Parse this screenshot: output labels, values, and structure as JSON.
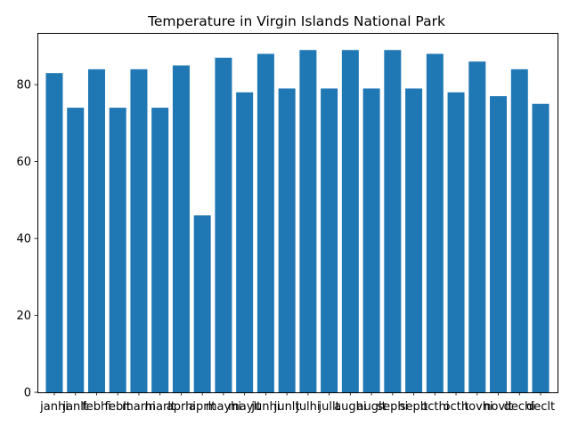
{
  "chart_data": {
    "type": "bar",
    "title": "Temperature in Virgin Islands National Park",
    "xlabel": "",
    "ylabel": "",
    "categories": [
      "janhi",
      "janlo",
      "febhi",
      "feblo",
      "marhi",
      "marlo",
      "aprhi",
      "aprlo",
      "mayhi",
      "maylo",
      "junhi",
      "junlo",
      "julhi",
      "jullo",
      "aughi",
      "auglo",
      "sephi",
      "seplo",
      "octhi",
      "octlo",
      "novhi",
      "novlo",
      "dechi",
      "declt"
    ],
    "tick_labels_as_rendered": [
      "janhi",
      "janlt",
      "febhi",
      "feblt",
      "marhi",
      "marlt",
      "aprhi",
      "aprlt",
      "mayhi",
      "maylt",
      "junhi",
      "junlt",
      "julhi",
      "jullt",
      "aughi",
      "auglt",
      "sephi",
      "seplt",
      "octhi",
      "octlt",
      "novhi",
      "novlt",
      "dechi",
      "declt"
    ],
    "values": [
      83,
      74,
      84,
      74,
      84,
      74,
      85,
      46,
      87,
      78,
      88,
      79,
      89,
      79,
      89,
      79,
      89,
      79,
      88,
      78,
      86,
      77,
      84,
      75
    ],
    "ylim": [
      0,
      93.45
    ],
    "yticks": [
      0,
      20,
      40,
      60,
      80
    ],
    "grid": false,
    "legend": "none",
    "bar_color": "#1f77b4"
  }
}
